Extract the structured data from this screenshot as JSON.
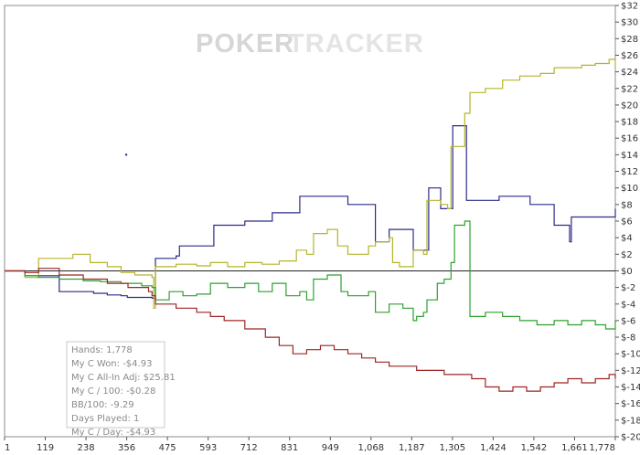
{
  "watermark": {
    "part1": "POKER",
    "part2": "TRACKER"
  },
  "chart_data": {
    "type": "line",
    "xlim": [
      1,
      1778
    ],
    "ylim": [
      -20,
      32
    ],
    "x_ticks": [
      "1",
      "119",
      "238",
      "356",
      "475",
      "593",
      "712",
      "831",
      "949",
      "1,068",
      "1,187",
      "1,305",
      "1,424",
      "1,542",
      "1,661",
      "1,778"
    ],
    "y_ticks": [
      "$32",
      "$30",
      "$28",
      "$26",
      "$24",
      "$22",
      "$20",
      "$18",
      "$16",
      "$14",
      "$12",
      "$10",
      "$8",
      "$6",
      "$4",
      "$2",
      "$0",
      "$-2",
      "$-4",
      "$-6",
      "$-8",
      "$-10",
      "$-12",
      "$-14",
      "$-16",
      "$-18",
      "$-20"
    ],
    "grid": false,
    "series": [
      {
        "color": "#2b2b8c",
        "points": [
          [
            1,
            0
          ],
          [
            60,
            -0.6
          ],
          [
            140,
            -0.6
          ],
          [
            160,
            -2.5
          ],
          [
            230,
            -2.5
          ],
          [
            260,
            -2.7
          ],
          [
            300,
            -2.9
          ],
          [
            340,
            -3.0
          ],
          [
            358,
            -3.2
          ],
          [
            430,
            -3.3
          ],
          [
            440,
            1.5
          ],
          [
            500,
            1.8
          ],
          [
            510,
            3.0
          ],
          [
            590,
            3.0
          ],
          [
            610,
            5.5
          ],
          [
            680,
            5.5
          ],
          [
            700,
            6.0
          ],
          [
            760,
            6.0
          ],
          [
            780,
            7.0
          ],
          [
            840,
            7.0
          ],
          [
            860,
            9.0
          ],
          [
            980,
            9.0
          ],
          [
            1000,
            8.0
          ],
          [
            1060,
            8.0
          ],
          [
            1080,
            3.5
          ],
          [
            1110,
            3.5
          ],
          [
            1120,
            5.0
          ],
          [
            1180,
            5.0
          ],
          [
            1190,
            2.5
          ],
          [
            1230,
            2.5
          ],
          [
            1235,
            10.0
          ],
          [
            1265,
            10.0
          ],
          [
            1270,
            7.5
          ],
          [
            1295,
            7.5
          ],
          [
            1305,
            17.5
          ],
          [
            1340,
            17.5
          ],
          [
            1345,
            8.5
          ],
          [
            1420,
            8.5
          ],
          [
            1440,
            9.0
          ],
          [
            1520,
            9.0
          ],
          [
            1530,
            8.0
          ],
          [
            1580,
            8.0
          ],
          [
            1600,
            5.5
          ],
          [
            1640,
            5.5
          ],
          [
            1645,
            3.5
          ],
          [
            1650,
            6.5
          ],
          [
            1770,
            6.5
          ],
          [
            1778,
            7.5
          ]
        ]
      },
      {
        "color": "#b5b52c",
        "points": [
          [
            1,
            0
          ],
          [
            60,
            -0.8
          ],
          [
            100,
            1.5
          ],
          [
            200,
            2.0
          ],
          [
            250,
            1.0
          ],
          [
            300,
            0.5
          ],
          [
            340,
            -0.2
          ],
          [
            380,
            -0.5
          ],
          [
            430,
            -0.8
          ],
          [
            435,
            -4.5
          ],
          [
            440,
            0.5
          ],
          [
            500,
            0.8
          ],
          [
            560,
            0.6
          ],
          [
            600,
            1.0
          ],
          [
            650,
            0.5
          ],
          [
            700,
            1.0
          ],
          [
            750,
            0.8
          ],
          [
            800,
            1.2
          ],
          [
            850,
            2.5
          ],
          [
            880,
            2.0
          ],
          [
            900,
            4.5
          ],
          [
            940,
            5.0
          ],
          [
            970,
            3.0
          ],
          [
            1000,
            2.0
          ],
          [
            1060,
            3.0
          ],
          [
            1080,
            3.5
          ],
          [
            1120,
            4.0
          ],
          [
            1130,
            1.0
          ],
          [
            1150,
            0.5
          ],
          [
            1170,
            0.5
          ],
          [
            1190,
            2.5
          ],
          [
            1220,
            2.0
          ],
          [
            1230,
            8.5
          ],
          [
            1270,
            8.0
          ],
          [
            1290,
            7.5
          ],
          [
            1300,
            15.0
          ],
          [
            1340,
            19.0
          ],
          [
            1355,
            21.5
          ],
          [
            1400,
            22.0
          ],
          [
            1450,
            23.0
          ],
          [
            1500,
            23.5
          ],
          [
            1560,
            23.8
          ],
          [
            1600,
            24.5
          ],
          [
            1640,
            24.5
          ],
          [
            1680,
            24.8
          ],
          [
            1720,
            25.0
          ],
          [
            1760,
            25.5
          ],
          [
            1778,
            24.5
          ]
        ]
      },
      {
        "color": "#2fa12f",
        "points": [
          [
            1,
            0
          ],
          [
            60,
            -0.6
          ],
          [
            100,
            -0.8
          ],
          [
            160,
            -1.0
          ],
          [
            230,
            -1.2
          ],
          [
            280,
            -1.3
          ],
          [
            340,
            -1.5
          ],
          [
            400,
            -1.8
          ],
          [
            430,
            -2.0
          ],
          [
            440,
            -3.5
          ],
          [
            460,
            -3.5
          ],
          [
            480,
            -2.5
          ],
          [
            520,
            -3.0
          ],
          [
            560,
            -2.8
          ],
          [
            600,
            -1.5
          ],
          [
            650,
            -2.0
          ],
          [
            700,
            -1.5
          ],
          [
            740,
            -2.5
          ],
          [
            780,
            -1.5
          ],
          [
            820,
            -3.0
          ],
          [
            860,
            -2.5
          ],
          [
            880,
            -3.5
          ],
          [
            900,
            -1.0
          ],
          [
            940,
            -0.5
          ],
          [
            980,
            -2.5
          ],
          [
            1000,
            -3.0
          ],
          [
            1060,
            -2.5
          ],
          [
            1080,
            -5.0
          ],
          [
            1120,
            -4.0
          ],
          [
            1160,
            -4.5
          ],
          [
            1190,
            -6.0
          ],
          [
            1200,
            -5.5
          ],
          [
            1220,
            -5.0
          ],
          [
            1230,
            -3.5
          ],
          [
            1260,
            -1.5
          ],
          [
            1280,
            -1.0
          ],
          [
            1300,
            1.0
          ],
          [
            1310,
            5.5
          ],
          [
            1340,
            6.0
          ],
          [
            1355,
            -5.5
          ],
          [
            1400,
            -5.0
          ],
          [
            1450,
            -5.5
          ],
          [
            1500,
            -6.0
          ],
          [
            1550,
            -6.5
          ],
          [
            1600,
            -6.0
          ],
          [
            1640,
            -6.5
          ],
          [
            1680,
            -6.0
          ],
          [
            1720,
            -6.5
          ],
          [
            1750,
            -7.0
          ],
          [
            1778,
            -6.0
          ]
        ]
      },
      {
        "color": "#9e2525",
        "points": [
          [
            1,
            0
          ],
          [
            60,
            -0.2
          ],
          [
            100,
            0.3
          ],
          [
            160,
            -0.5
          ],
          [
            230,
            -1.0
          ],
          [
            300,
            -1.5
          ],
          [
            360,
            -2.0
          ],
          [
            420,
            -2.5
          ],
          [
            430,
            -3.0
          ],
          [
            440,
            -4.0
          ],
          [
            500,
            -4.5
          ],
          [
            560,
            -5.0
          ],
          [
            600,
            -5.5
          ],
          [
            640,
            -6.0
          ],
          [
            700,
            -7.0
          ],
          [
            760,
            -8.0
          ],
          [
            800,
            -9.0
          ],
          [
            840,
            -10.0
          ],
          [
            880,
            -9.5
          ],
          [
            920,
            -9.0
          ],
          [
            960,
            -9.5
          ],
          [
            1000,
            -10.0
          ],
          [
            1040,
            -10.5
          ],
          [
            1080,
            -11.0
          ],
          [
            1120,
            -11.5
          ],
          [
            1160,
            -11.5
          ],
          [
            1200,
            -12.0
          ],
          [
            1240,
            -12.0
          ],
          [
            1280,
            -12.5
          ],
          [
            1320,
            -12.5
          ],
          [
            1360,
            -13.0
          ],
          [
            1400,
            -14.0
          ],
          [
            1440,
            -14.5
          ],
          [
            1480,
            -14.0
          ],
          [
            1520,
            -14.5
          ],
          [
            1560,
            -14.0
          ],
          [
            1600,
            -13.5
          ],
          [
            1640,
            -13.0
          ],
          [
            1680,
            -13.5
          ],
          [
            1720,
            -13.0
          ],
          [
            1760,
            -12.5
          ],
          [
            1778,
            -13.0
          ]
        ]
      }
    ]
  },
  "marker": {
    "x": 355,
    "y": 14
  },
  "stats": [
    "Hands: 1,778",
    "My C Won: -$4.93",
    "My C All-In Adj: $25.81",
    "My C / 100: -$0.28",
    "BB/100: -9.29",
    "Days Played: 1",
    "My C / Day: -$4.93"
  ]
}
